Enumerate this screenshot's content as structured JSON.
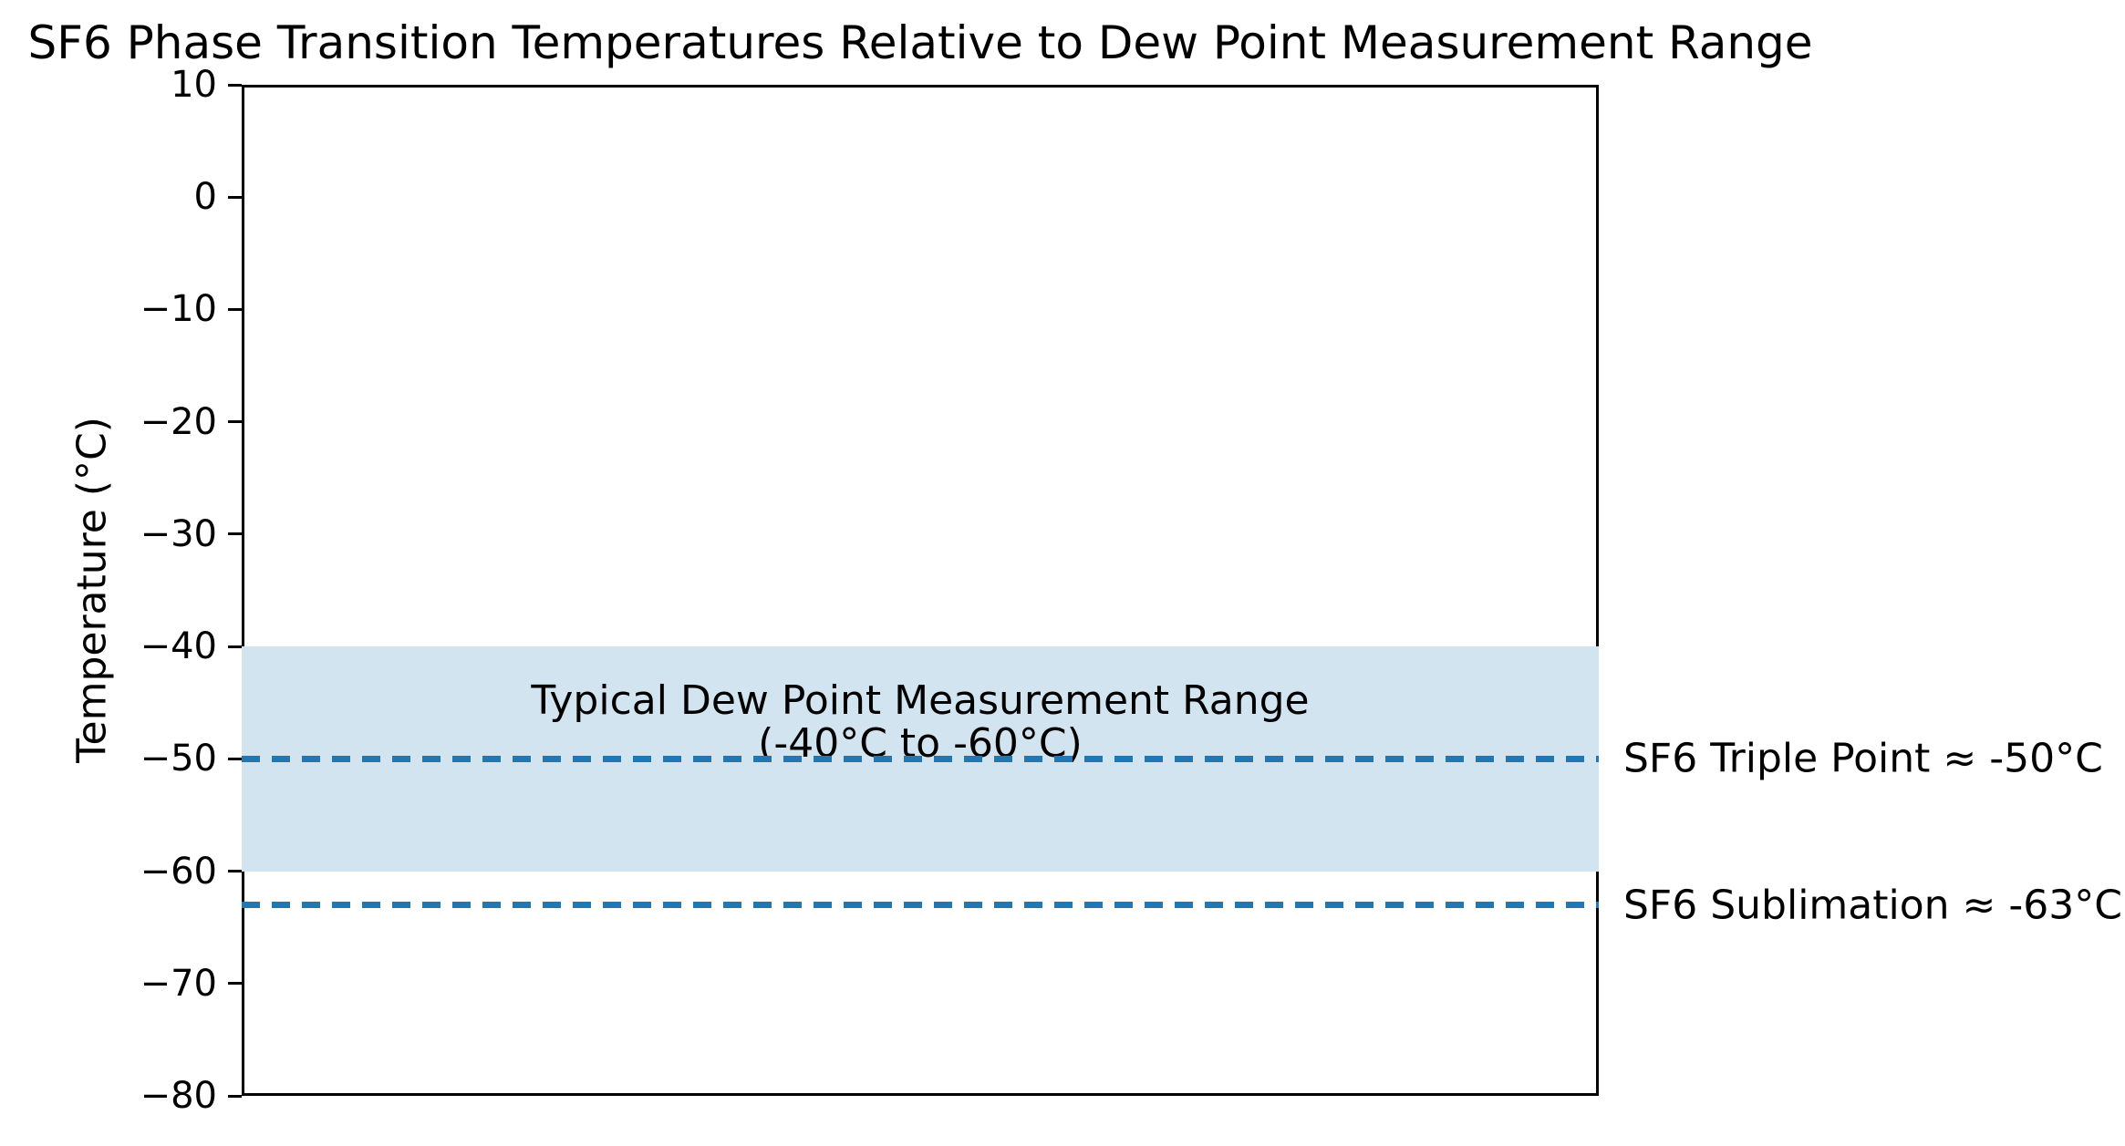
{
  "chart_data": {
    "type": "line",
    "title": "SF6 Phase Transition Temperatures Relative to Dew Point Measurement Range",
    "xlabel": "",
    "ylabel": "Temperature (°C)",
    "ylim": [
      -80,
      10
    ],
    "yticks": [
      10,
      0,
      -10,
      -20,
      -30,
      -40,
      -50,
      -60,
      -70,
      -80
    ],
    "ytick_labels": [
      "10",
      "0",
      "−10",
      "−20",
      "−30",
      "−40",
      "−50",
      "−60",
      "−70",
      "−80"
    ],
    "grid": false,
    "legend": "none",
    "axis_color": "#000000",
    "background_color": "#ffffff",
    "band": {
      "y_top": -40,
      "y_bottom": -60,
      "fill_color": "#d2e4f0",
      "label_line1": "Typical Dew Point Measurement Range",
      "label_line2": "(-40°C to -60°C)"
    },
    "hlines": [
      {
        "y": -50,
        "style": "dashed",
        "color": "#1f77b4",
        "annotation": "SF6 Triple Point ≈ -50°C"
      },
      {
        "y": -63,
        "style": "dashed",
        "color": "#1f77b4",
        "annotation": "SF6 Sublimation ≈ -63°C"
      }
    ]
  }
}
